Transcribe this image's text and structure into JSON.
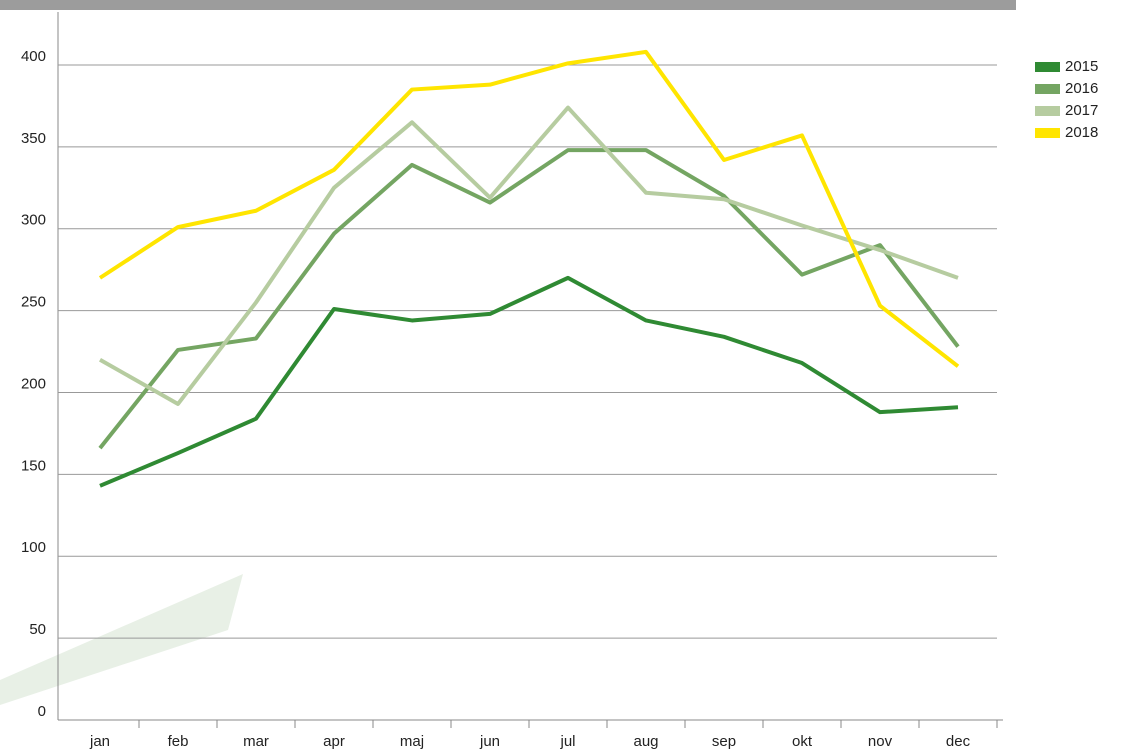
{
  "chart_data": {
    "type": "line",
    "categories": [
      "jan",
      "feb",
      "mar",
      "apr",
      "maj",
      "jun",
      "jul",
      "aug",
      "sep",
      "okt",
      "nov",
      "dec"
    ],
    "series": [
      {
        "name": "2015",
        "color": "#2f8a33",
        "values": [
          143,
          163,
          184,
          251,
          244,
          248,
          270,
          244,
          234,
          218,
          188,
          191
        ]
      },
      {
        "name": "2016",
        "color": "#74a562",
        "values": [
          166,
          226,
          233,
          297,
          339,
          316,
          348,
          348,
          320,
          272,
          290,
          228
        ]
      },
      {
        "name": "2017",
        "color": "#b6cca0",
        "values": [
          220,
          193,
          255,
          325,
          365,
          319,
          374,
          322,
          318,
          302,
          287,
          270
        ]
      },
      {
        "name": "2018",
        "color": "#ffe500",
        "values": [
          270,
          301,
          311,
          336,
          385,
          388,
          401,
          408,
          342,
          357,
          253,
          216
        ]
      }
    ],
    "ylim": [
      0,
      432
    ],
    "yticks": [
      0,
      50,
      100,
      150,
      200,
      250,
      300,
      350,
      400
    ],
    "grid": true,
    "legend": "right"
  }
}
